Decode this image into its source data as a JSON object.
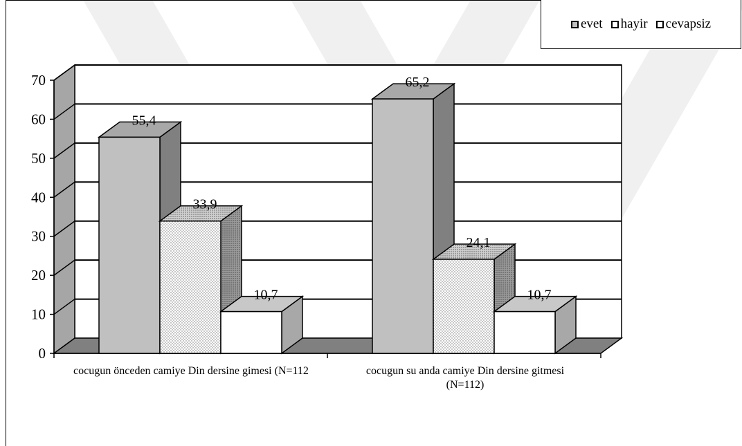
{
  "chart_data": {
    "type": "bar",
    "categories": [
      "cocugun önceden camiye Din dersine gimesi (N=112",
      "cocugun su anda camiye Din dersine gitmesi (N=112)"
    ],
    "series": [
      {
        "name": "evet",
        "values": [
          55.4,
          65.2
        ],
        "labels": [
          "55,4",
          "65,2"
        ]
      },
      {
        "name": "hayir",
        "values": [
          33.9,
          24.1
        ],
        "labels": [
          "33,9",
          "24,1"
        ]
      },
      {
        "name": "cevapsiz",
        "values": [
          10.7,
          10.7
        ],
        "labels": [
          "10,7",
          "10,7"
        ]
      }
    ],
    "yticks": [
      "0",
      "10",
      "20",
      "30",
      "40",
      "50",
      "60",
      "70"
    ],
    "ylim": [
      0,
      70
    ],
    "grid": true,
    "legend_position": "top-right",
    "style": "3d-bar"
  },
  "colors": {
    "evet_front": "#c0c0c0",
    "evet_top": "#a8a8a8",
    "evet_side": "#808080",
    "hayir_front": "#f4f4f4",
    "hayir_top": "#d4d4d4",
    "hayir_side": "#a0a0a0",
    "cevapsiz_front": "#ffffff",
    "cevapsiz_top": "#c8c8c8",
    "cevapsiz_side": "#a8a8a8",
    "wall_left": "#a6a6a6",
    "floor": "#808080",
    "watermark": "#f0f0f0"
  }
}
